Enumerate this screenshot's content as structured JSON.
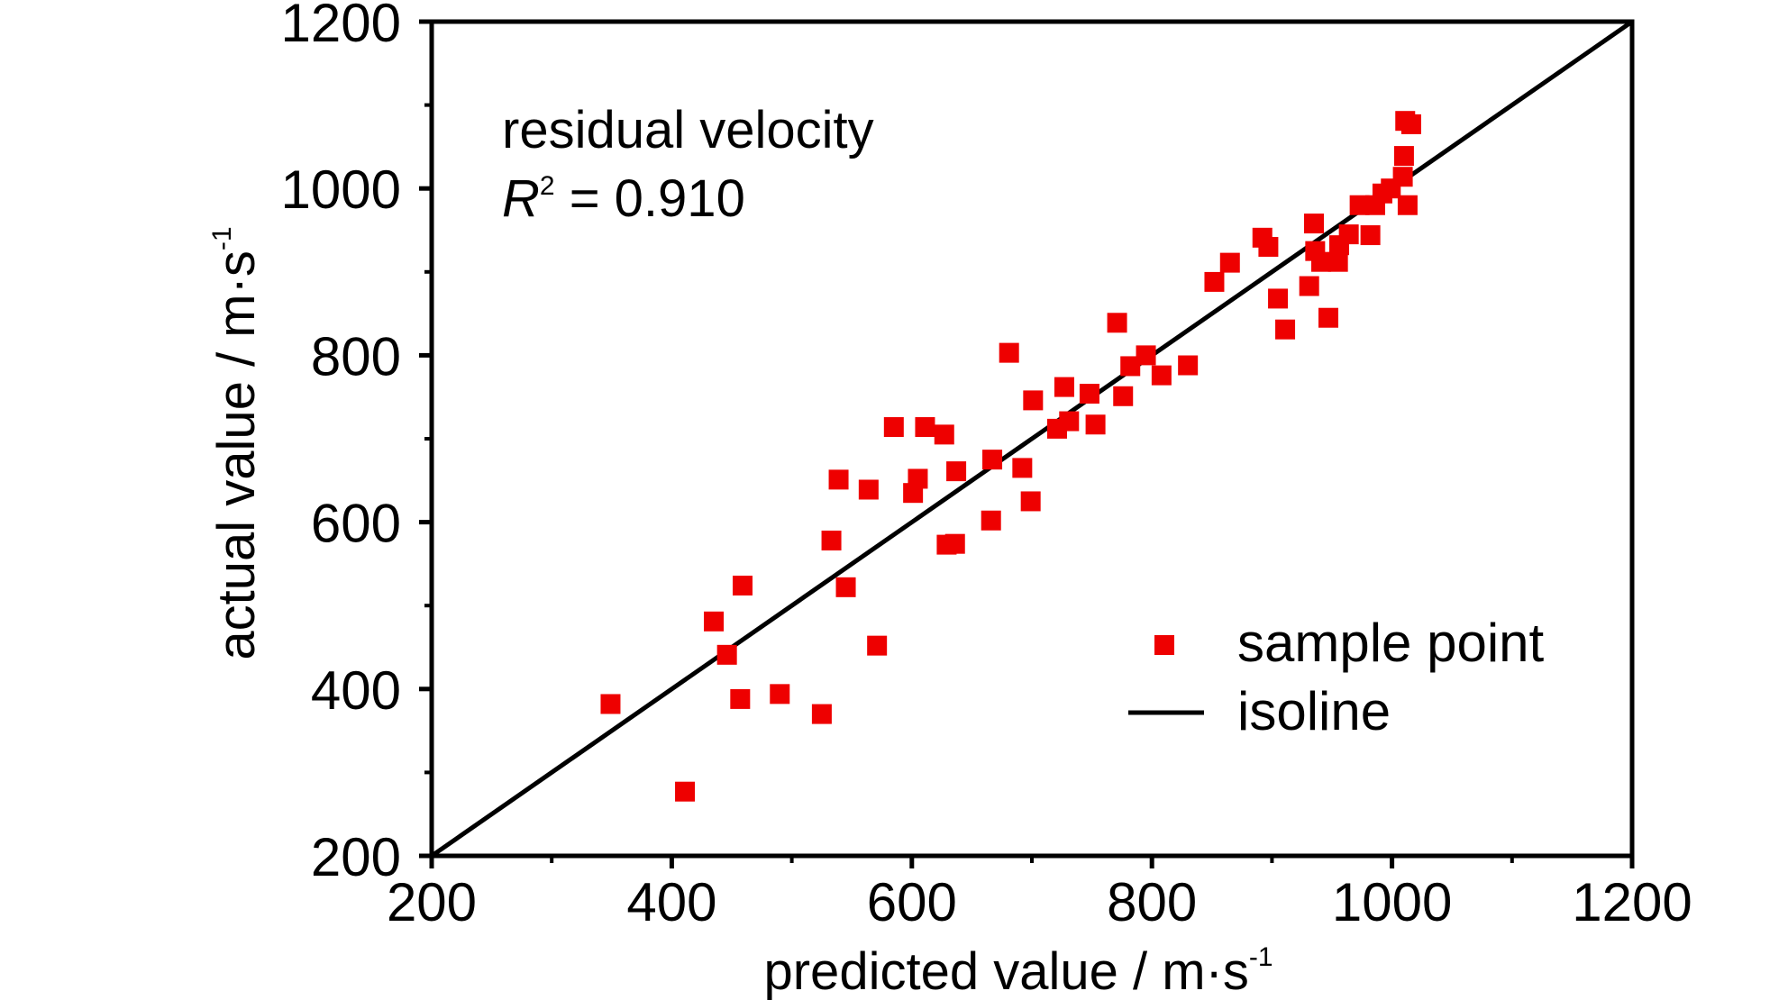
{
  "chart_data": {
    "type": "scatter",
    "xlabel": "predicted value / m·s",
    "xlabel_sup": "-1",
    "ylabel": "actual value / m·s",
    "ylabel_sup": "-1",
    "xlim": [
      200,
      1200
    ],
    "ylim": [
      200,
      1200
    ],
    "x_ticks": [
      200,
      400,
      600,
      800,
      1000,
      1200
    ],
    "y_ticks": [
      200,
      400,
      600,
      800,
      1000,
      1200
    ],
    "grid": false,
    "legend_position": "bottom-right",
    "annotation": {
      "line1": "residual velocity",
      "r_symbol": "R",
      "r_sup": "2",
      "r_value": " = 0.910"
    },
    "series": [
      {
        "name": "sample point",
        "marker": "square",
        "color": "#ee0000",
        "points": [
          [
            349,
            382
          ],
          [
            411,
            277
          ],
          [
            435,
            481
          ],
          [
            446,
            441
          ],
          [
            457,
            388
          ],
          [
            459,
            524
          ],
          [
            490,
            394
          ],
          [
            525,
            370
          ],
          [
            533,
            578
          ],
          [
            539,
            651
          ],
          [
            545,
            522
          ],
          [
            564,
            639
          ],
          [
            571,
            452
          ],
          [
            585,
            714
          ],
          [
            601,
            635
          ],
          [
            605,
            652
          ],
          [
            611,
            714
          ],
          [
            627,
            705
          ],
          [
            629,
            573
          ],
          [
            636,
            574
          ],
          [
            637,
            661
          ],
          [
            666,
            602
          ],
          [
            667,
            675
          ],
          [
            681,
            803
          ],
          [
            692,
            665
          ],
          [
            699,
            625
          ],
          [
            701,
            746
          ],
          [
            721,
            712
          ],
          [
            727,
            762
          ],
          [
            731,
            721
          ],
          [
            748,
            754
          ],
          [
            753,
            717
          ],
          [
            771,
            839
          ],
          [
            776,
            751
          ],
          [
            782,
            787
          ],
          [
            795,
            800
          ],
          [
            808,
            776
          ],
          [
            830,
            788
          ],
          [
            852,
            888
          ],
          [
            865,
            911
          ],
          [
            892,
            941
          ],
          [
            897,
            930
          ],
          [
            905,
            868
          ],
          [
            911,
            831
          ],
          [
            931,
            883
          ],
          [
            935,
            958
          ],
          [
            936,
            925
          ],
          [
            941,
            912
          ],
          [
            947,
            845
          ],
          [
            955,
            912
          ],
          [
            956,
            932
          ],
          [
            964,
            945
          ],
          [
            973,
            980
          ],
          [
            982,
            944
          ],
          [
            986,
            980
          ],
          [
            992,
            994
          ],
          [
            999,
            1000
          ],
          [
            1009,
            1014
          ],
          [
            1010,
            1039
          ],
          [
            1011,
            1081
          ],
          [
            1013,
            980
          ],
          [
            1016,
            1077
          ]
        ]
      },
      {
        "name": "isoline",
        "marker": "line",
        "color": "#000000",
        "points": [
          [
            200,
            200
          ],
          [
            1200,
            1200
          ]
        ]
      }
    ]
  }
}
